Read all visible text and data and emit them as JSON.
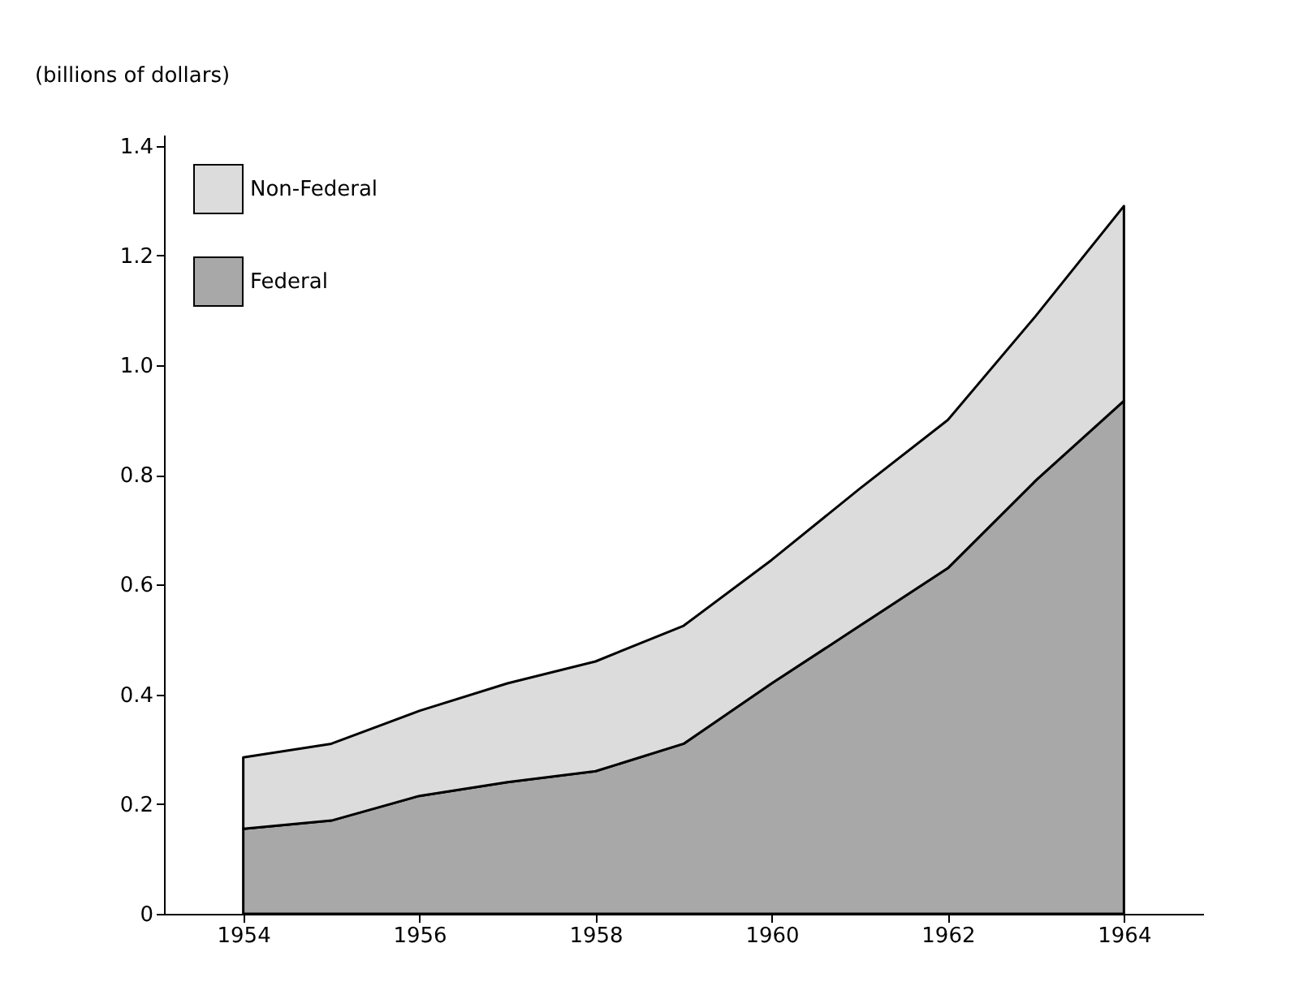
{
  "chart_data": {
    "type": "area",
    "stacked": true,
    "ylabel": "(billions of dollars)",
    "x": [
      1954,
      1955,
      1956,
      1957,
      1958,
      1959,
      1960,
      1961,
      1962,
      1963,
      1964
    ],
    "series": [
      {
        "name": "Federal",
        "color": "#a8a8a8",
        "values": [
          0.155,
          0.17,
          0.215,
          0.24,
          0.26,
          0.31,
          0.42,
          0.525,
          0.63,
          0.79,
          0.935
        ]
      },
      {
        "name": "Non-Federal",
        "color": "#dcdcdc",
        "values": [
          0.13,
          0.14,
          0.155,
          0.18,
          0.2,
          0.215,
          0.225,
          0.25,
          0.27,
          0.3,
          0.355
        ]
      }
    ],
    "xlim": [
      1953.1,
      1964.9
    ],
    "xticks": [
      1954,
      1956,
      1958,
      1960,
      1962,
      1964
    ],
    "ylim": [
      0,
      1.42
    ],
    "yticks": [
      0,
      0.2,
      0.4,
      0.6,
      0.8,
      {
        "value": 1,
        "label": "1.0"
      },
      1.2,
      1.4
    ],
    "grid": false,
    "legend": "top left"
  }
}
